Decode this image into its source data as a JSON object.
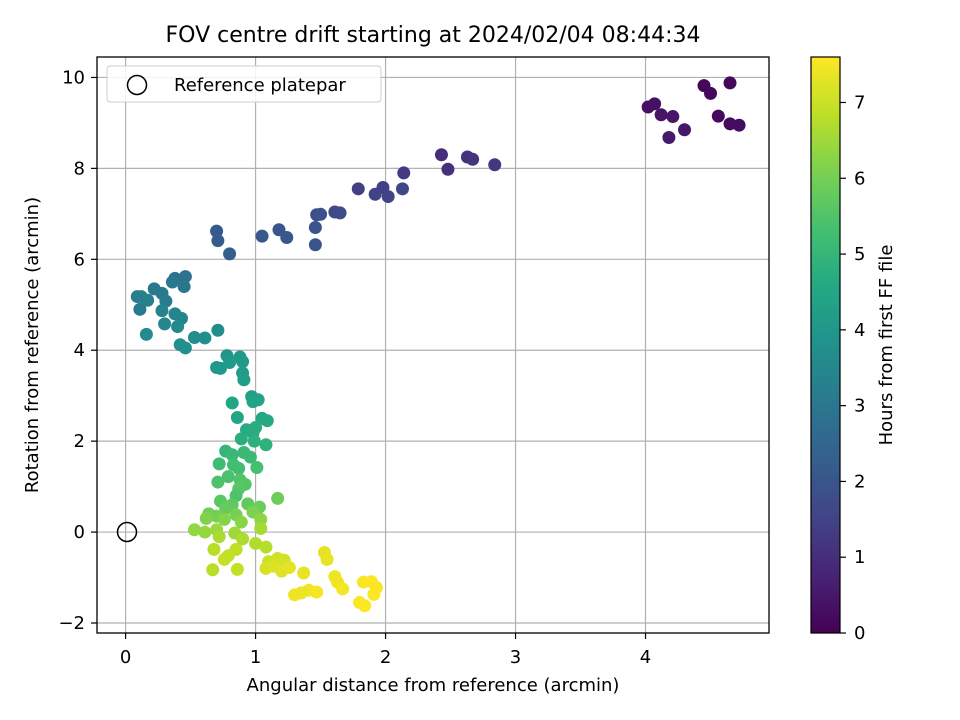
{
  "chart_data": {
    "type": "scatter",
    "title": "FOV centre drift starting at 2024/02/04 08:44:34",
    "xlabel": "Angular distance from reference (arcmin)",
    "ylabel": "Rotation from reference (arcmin)",
    "xlim": [
      -0.22,
      4.95
    ],
    "ylim": [
      -2.22,
      10.45
    ],
    "xticks": [
      0,
      1,
      2,
      3,
      4
    ],
    "yticks": [
      -2,
      0,
      2,
      4,
      6,
      8,
      10
    ],
    "grid": true,
    "legend": {
      "position": "top-left",
      "entries": [
        "Reference platepar"
      ]
    },
    "reference_point": {
      "x": 0,
      "y": 0
    },
    "colorbar": {
      "label": "Hours from first FF file",
      "colormap": "viridis",
      "range": [
        0,
        7.6
      ],
      "ticks": [
        0,
        1,
        2,
        3,
        4,
        5,
        6,
        7
      ]
    },
    "points": [
      {
        "x": 4.45,
        "y": 9.82,
        "h": 0.12
      },
      {
        "x": 4.65,
        "y": 9.88,
        "h": 0.15
      },
      {
        "x": 4.5,
        "y": 9.65,
        "h": 0.18
      },
      {
        "x": 4.02,
        "y": 9.35,
        "h": 0.3
      },
      {
        "x": 4.07,
        "y": 9.42,
        "h": 0.35
      },
      {
        "x": 4.12,
        "y": 9.18,
        "h": 0.4
      },
      {
        "x": 4.21,
        "y": 9.14,
        "h": 0.45
      },
      {
        "x": 4.56,
        "y": 9.15,
        "h": 0.2
      },
      {
        "x": 4.65,
        "y": 8.98,
        "h": 0.22
      },
      {
        "x": 4.72,
        "y": 8.95,
        "h": 0.25
      },
      {
        "x": 4.3,
        "y": 8.85,
        "h": 0.5
      },
      {
        "x": 4.18,
        "y": 8.68,
        "h": 0.55
      },
      {
        "x": 2.43,
        "y": 8.3,
        "h": 1.0
      },
      {
        "x": 2.48,
        "y": 7.98,
        "h": 1.05
      },
      {
        "x": 2.63,
        "y": 8.25,
        "h": 1.1
      },
      {
        "x": 2.67,
        "y": 8.2,
        "h": 1.15
      },
      {
        "x": 2.84,
        "y": 8.08,
        "h": 1.2
      },
      {
        "x": 2.14,
        "y": 7.9,
        "h": 1.3
      },
      {
        "x": 1.79,
        "y": 7.55,
        "h": 1.4
      },
      {
        "x": 1.98,
        "y": 7.58,
        "h": 1.45
      },
      {
        "x": 1.92,
        "y": 7.43,
        "h": 1.5
      },
      {
        "x": 2.02,
        "y": 7.38,
        "h": 1.55
      },
      {
        "x": 2.13,
        "y": 7.55,
        "h": 1.6
      },
      {
        "x": 1.61,
        "y": 7.04,
        "h": 1.7
      },
      {
        "x": 1.65,
        "y": 7.02,
        "h": 1.75
      },
      {
        "x": 1.47,
        "y": 6.98,
        "h": 1.8
      },
      {
        "x": 1.5,
        "y": 6.99,
        "h": 1.85
      },
      {
        "x": 1.46,
        "y": 6.7,
        "h": 1.9
      },
      {
        "x": 1.46,
        "y": 6.32,
        "h": 1.95
      },
      {
        "x": 1.18,
        "y": 6.65,
        "h": 2.0
      },
      {
        "x": 1.24,
        "y": 6.48,
        "h": 2.05
      },
      {
        "x": 1.05,
        "y": 6.51,
        "h": 2.1
      },
      {
        "x": 0.7,
        "y": 6.62,
        "h": 2.15
      },
      {
        "x": 0.71,
        "y": 6.41,
        "h": 2.2
      },
      {
        "x": 0.8,
        "y": 6.12,
        "h": 2.25
      },
      {
        "x": 0.09,
        "y": 5.18,
        "h": 3.2
      },
      {
        "x": 0.12,
        "y": 5.18,
        "h": 3.25
      },
      {
        "x": 0.17,
        "y": 5.1,
        "h": 3.3
      },
      {
        "x": 0.11,
        "y": 4.9,
        "h": 3.1
      },
      {
        "x": 0.22,
        "y": 5.35,
        "h": 3.0
      },
      {
        "x": 0.28,
        "y": 5.25,
        "h": 3.05
      },
      {
        "x": 0.31,
        "y": 5.08,
        "h": 3.15
      },
      {
        "x": 0.38,
        "y": 5.58,
        "h": 2.9
      },
      {
        "x": 0.46,
        "y": 5.62,
        "h": 2.85
      },
      {
        "x": 0.45,
        "y": 5.4,
        "h": 2.95
      },
      {
        "x": 0.36,
        "y": 5.5,
        "h": 3.0
      },
      {
        "x": 0.28,
        "y": 4.87,
        "h": 3.35
      },
      {
        "x": 0.38,
        "y": 4.8,
        "h": 3.4
      },
      {
        "x": 0.43,
        "y": 4.7,
        "h": 3.45
      },
      {
        "x": 0.3,
        "y": 4.58,
        "h": 3.5
      },
      {
        "x": 0.4,
        "y": 4.52,
        "h": 3.55
      },
      {
        "x": 0.16,
        "y": 4.35,
        "h": 3.6
      },
      {
        "x": 0.53,
        "y": 4.28,
        "h": 3.65
      },
      {
        "x": 0.61,
        "y": 4.27,
        "h": 3.7
      },
      {
        "x": 0.42,
        "y": 4.12,
        "h": 3.75
      },
      {
        "x": 0.46,
        "y": 4.05,
        "h": 3.8
      },
      {
        "x": 0.71,
        "y": 4.44,
        "h": 3.7
      },
      {
        "x": 0.78,
        "y": 3.88,
        "h": 4.0
      },
      {
        "x": 0.88,
        "y": 3.85,
        "h": 4.05
      },
      {
        "x": 0.9,
        "y": 3.75,
        "h": 4.1
      },
      {
        "x": 0.7,
        "y": 3.62,
        "h": 4.0
      },
      {
        "x": 0.73,
        "y": 3.6,
        "h": 4.05
      },
      {
        "x": 0.8,
        "y": 3.73,
        "h": 4.1
      },
      {
        "x": 0.9,
        "y": 3.5,
        "h": 4.15
      },
      {
        "x": 0.91,
        "y": 3.35,
        "h": 4.2
      },
      {
        "x": 0.97,
        "y": 2.98,
        "h": 4.3
      },
      {
        "x": 1.02,
        "y": 2.91,
        "h": 4.35
      },
      {
        "x": 0.98,
        "y": 2.87,
        "h": 4.4
      },
      {
        "x": 0.82,
        "y": 2.84,
        "h": 4.45
      },
      {
        "x": 0.86,
        "y": 2.52,
        "h": 4.5
      },
      {
        "x": 1.05,
        "y": 2.5,
        "h": 4.55
      },
      {
        "x": 1.09,
        "y": 2.45,
        "h": 4.6
      },
      {
        "x": 0.93,
        "y": 2.25,
        "h": 4.65
      },
      {
        "x": 0.98,
        "y": 2.18,
        "h": 4.7
      },
      {
        "x": 0.89,
        "y": 2.05,
        "h": 4.75
      },
      {
        "x": 0.99,
        "y": 2.0,
        "h": 4.8
      },
      {
        "x": 1.08,
        "y": 1.92,
        "h": 4.85
      },
      {
        "x": 1.0,
        "y": 2.3,
        "h": 4.7
      },
      {
        "x": 0.77,
        "y": 1.78,
        "h": 5.0
      },
      {
        "x": 0.82,
        "y": 1.7,
        "h": 5.05
      },
      {
        "x": 0.91,
        "y": 1.75,
        "h": 5.1
      },
      {
        "x": 0.96,
        "y": 1.65,
        "h": 5.15
      },
      {
        "x": 0.72,
        "y": 1.5,
        "h": 5.2
      },
      {
        "x": 0.83,
        "y": 1.48,
        "h": 5.25
      },
      {
        "x": 0.87,
        "y": 1.4,
        "h": 5.3
      },
      {
        "x": 1.01,
        "y": 1.42,
        "h": 5.35
      },
      {
        "x": 0.79,
        "y": 1.22,
        "h": 5.4
      },
      {
        "x": 0.71,
        "y": 1.1,
        "h": 5.45
      },
      {
        "x": 0.88,
        "y": 1.15,
        "h": 5.5
      },
      {
        "x": 0.92,
        "y": 1.05,
        "h": 5.55
      },
      {
        "x": 0.87,
        "y": 0.95,
        "h": 5.6
      },
      {
        "x": 0.85,
        "y": 0.8,
        "h": 5.45
      },
      {
        "x": 0.73,
        "y": 0.68,
        "h": 5.65
      },
      {
        "x": 0.82,
        "y": 0.6,
        "h": 5.7
      },
      {
        "x": 0.94,
        "y": 0.62,
        "h": 5.75
      },
      {
        "x": 0.77,
        "y": 0.52,
        "h": 5.8
      },
      {
        "x": 1.03,
        "y": 0.55,
        "h": 5.85
      },
      {
        "x": 1.17,
        "y": 0.74,
        "h": 5.9
      },
      {
        "x": 0.64,
        "y": 0.4,
        "h": 5.95
      },
      {
        "x": 0.7,
        "y": 0.35,
        "h": 6.0
      },
      {
        "x": 0.85,
        "y": 0.38,
        "h": 6.05
      },
      {
        "x": 0.98,
        "y": 0.44,
        "h": 6.1
      },
      {
        "x": 0.62,
        "y": 0.3,
        "h": 6.15
      },
      {
        "x": 0.76,
        "y": 0.28,
        "h": 6.2
      },
      {
        "x": 0.89,
        "y": 0.22,
        "h": 6.25
      },
      {
        "x": 1.04,
        "y": 0.28,
        "h": 6.3
      },
      {
        "x": 0.53,
        "y": 0.05,
        "h": 6.35
      },
      {
        "x": 0.61,
        "y": 0.0,
        "h": 6.4
      },
      {
        "x": 0.7,
        "y": 0.05,
        "h": 6.45
      },
      {
        "x": 0.84,
        "y": -0.02,
        "h": 6.5
      },
      {
        "x": 1.04,
        "y": 0.08,
        "h": 6.55
      },
      {
        "x": 0.72,
        "y": -0.1,
        "h": 6.6
      },
      {
        "x": 0.9,
        "y": -0.15,
        "h": 6.65
      },
      {
        "x": 1.0,
        "y": -0.25,
        "h": 6.7
      },
      {
        "x": 1.08,
        "y": -0.33,
        "h": 6.75
      },
      {
        "x": 0.68,
        "y": -0.38,
        "h": 6.8
      },
      {
        "x": 0.85,
        "y": -0.38,
        "h": 6.85
      },
      {
        "x": 0.79,
        "y": -0.52,
        "h": 6.9
      },
      {
        "x": 0.76,
        "y": -0.6,
        "h": 6.95
      },
      {
        "x": 0.67,
        "y": -0.83,
        "h": 6.8
      },
      {
        "x": 0.86,
        "y": -0.82,
        "h": 6.9
      },
      {
        "x": 1.1,
        "y": -0.65,
        "h": 7.0
      },
      {
        "x": 1.17,
        "y": -0.58,
        "h": 7.05
      },
      {
        "x": 1.22,
        "y": -0.62,
        "h": 7.1
      },
      {
        "x": 1.08,
        "y": -0.8,
        "h": 7.15
      },
      {
        "x": 1.14,
        "y": -0.75,
        "h": 7.2
      },
      {
        "x": 1.2,
        "y": -0.86,
        "h": 7.25
      },
      {
        "x": 1.26,
        "y": -0.78,
        "h": 7.3
      },
      {
        "x": 1.37,
        "y": -0.9,
        "h": 7.35
      },
      {
        "x": 1.53,
        "y": -0.45,
        "h": 7.3
      },
      {
        "x": 1.55,
        "y": -0.6,
        "h": 7.35
      },
      {
        "x": 1.61,
        "y": -0.98,
        "h": 7.4
      },
      {
        "x": 1.63,
        "y": -1.1,
        "h": 7.45
      },
      {
        "x": 1.67,
        "y": -1.25,
        "h": 7.5
      },
      {
        "x": 1.41,
        "y": -1.28,
        "h": 7.45
      },
      {
        "x": 1.47,
        "y": -1.32,
        "h": 7.5
      },
      {
        "x": 1.3,
        "y": -1.38,
        "h": 7.45
      },
      {
        "x": 1.35,
        "y": -1.34,
        "h": 7.4
      },
      {
        "x": 1.83,
        "y": -1.1,
        "h": 7.55
      },
      {
        "x": 1.89,
        "y": -1.09,
        "h": 7.6
      },
      {
        "x": 1.93,
        "y": -1.22,
        "h": 7.55
      },
      {
        "x": 1.91,
        "y": -1.37,
        "h": 7.6
      },
      {
        "x": 1.8,
        "y": -1.55,
        "h": 7.55
      },
      {
        "x": 1.84,
        "y": -1.62,
        "h": 7.6
      }
    ]
  }
}
